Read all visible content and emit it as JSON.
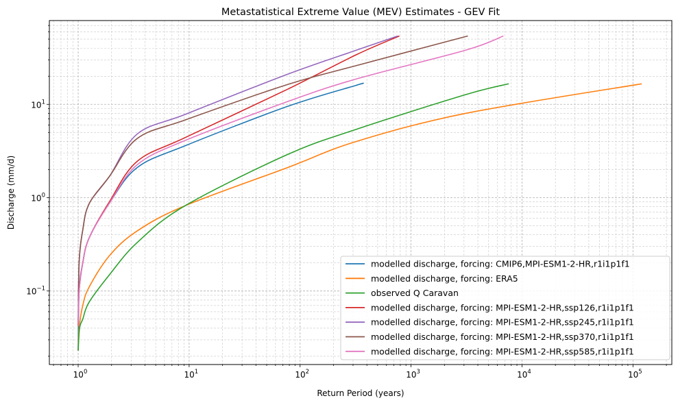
{
  "chart_data": {
    "type": "line",
    "title": "Metastatistical Extreme Value (MEV) Estimates - GEV Fit",
    "xlabel": "Return Period (years)",
    "ylabel": "Discharge (mm/d)",
    "xscale": "log",
    "yscale": "log",
    "xlim": [
      0.55,
      224000
    ],
    "ylim": [
      0.0163,
      79
    ],
    "grid": true,
    "legend_position": "lower-right",
    "x_ticks": [
      {
        "value": 1,
        "base": "10",
        "exp": "0"
      },
      {
        "value": 10,
        "base": "10",
        "exp": "1"
      },
      {
        "value": 100,
        "base": "10",
        "exp": "2"
      },
      {
        "value": 1000,
        "base": "10",
        "exp": "3"
      },
      {
        "value": 10000,
        "base": "10",
        "exp": "4"
      },
      {
        "value": 100000,
        "base": "10",
        "exp": "5"
      }
    ],
    "y_ticks": [
      {
        "value": 0.1,
        "base": "10",
        "exp": "−1"
      },
      {
        "value": 1,
        "base": "10",
        "exp": "0"
      },
      {
        "value": 10,
        "base": "10",
        "exp": "1"
      }
    ],
    "series": [
      {
        "name": "modelled discharge, forcing: CMIP6,MPI-ESM1-2-HR,r1i1p1f1",
        "color": "#1f77b4",
        "points": [
          [
            1,
            0.023
          ],
          [
            1.02,
            0.1
          ],
          [
            1.1,
            0.2
          ],
          [
            1.255,
            0.37
          ],
          [
            1.92,
            0.88
          ],
          [
            3.4,
            2.1
          ],
          [
            9.2,
            3.6
          ],
          [
            77,
            9.5
          ],
          [
            321,
            16.0
          ],
          [
            360,
            16.6
          ]
        ]
      },
      {
        "name": "modelled discharge, forcing: ERA5",
        "color": "#ff7f0e",
        "points": [
          [
            1,
            0.023
          ],
          [
            1.02,
            0.04
          ],
          [
            1.1,
            0.07
          ],
          [
            1.255,
            0.11
          ],
          [
            1.92,
            0.24
          ],
          [
            3.4,
            0.44
          ],
          [
            9.2,
            0.82
          ],
          [
            77,
            2.1
          ],
          [
            321,
            4.0
          ],
          [
            3100,
            8.0
          ],
          [
            120000,
            16.6
          ]
        ]
      },
      {
        "name": "observed Q Caravan",
        "color": "#2ca02c",
        "points": [
          [
            1,
            0.023
          ],
          [
            1.03,
            0.04
          ],
          [
            1.1,
            0.05
          ],
          [
            1.255,
            0.076
          ],
          [
            1.92,
            0.15
          ],
          [
            3.4,
            0.33
          ],
          [
            9.2,
            0.82
          ],
          [
            77,
            2.9
          ],
          [
            321,
            5.4
          ],
          [
            3100,
            12.7
          ],
          [
            7600,
            16.6
          ]
        ]
      },
      {
        "name": "modelled discharge, forcing: MPI-ESM1-2-HR,ssp126,r1i1p1f1",
        "color": "#d62728",
        "points": [
          [
            1,
            0.042
          ],
          [
            1.02,
            0.1
          ],
          [
            1.1,
            0.2
          ],
          [
            1.255,
            0.37
          ],
          [
            1.92,
            0.91
          ],
          [
            3.4,
            2.45
          ],
          [
            9.2,
            4.4
          ],
          [
            77,
            14.5
          ],
          [
            321,
            34
          ],
          [
            785,
            54
          ]
        ]
      },
      {
        "name": "modelled discharge, forcing: MPI-ESM1-2-HR,ssp245,r1i1p1f1",
        "color": "#9467bd",
        "points": [
          [
            1,
            0.042
          ],
          [
            1.02,
            0.2
          ],
          [
            1.1,
            0.45
          ],
          [
            1.255,
            0.86
          ],
          [
            1.92,
            1.7
          ],
          [
            3.4,
            4.8
          ],
          [
            9.2,
            7.8
          ],
          [
            77,
            21
          ],
          [
            321,
            38
          ],
          [
            760,
            54
          ]
        ]
      },
      {
        "name": "modelled discharge, forcing: MPI-ESM1-2-HR,ssp370,r1i1p1f1",
        "color": "#8c564b",
        "points": [
          [
            1,
            0.042
          ],
          [
            1.02,
            0.2
          ],
          [
            1.1,
            0.45
          ],
          [
            1.255,
            0.86
          ],
          [
            1.92,
            1.7
          ],
          [
            3.4,
            4.3
          ],
          [
            9.2,
            6.8
          ],
          [
            77,
            16.3
          ],
          [
            321,
            26
          ],
          [
            3250,
            54
          ]
        ]
      },
      {
        "name": "modelled discharge, forcing: MPI-ESM1-2-HR,ssp585,r1i1p1f1",
        "color": "#e377c2",
        "points": [
          [
            1,
            0.042
          ],
          [
            1.02,
            0.1
          ],
          [
            1.1,
            0.2
          ],
          [
            1.255,
            0.37
          ],
          [
            1.92,
            0.88
          ],
          [
            3.4,
            2.25
          ],
          [
            9.2,
            4.1
          ],
          [
            77,
            10.7
          ],
          [
            321,
            18.7
          ],
          [
            3100,
            38
          ],
          [
            6800,
            54
          ]
        ]
      }
    ]
  }
}
